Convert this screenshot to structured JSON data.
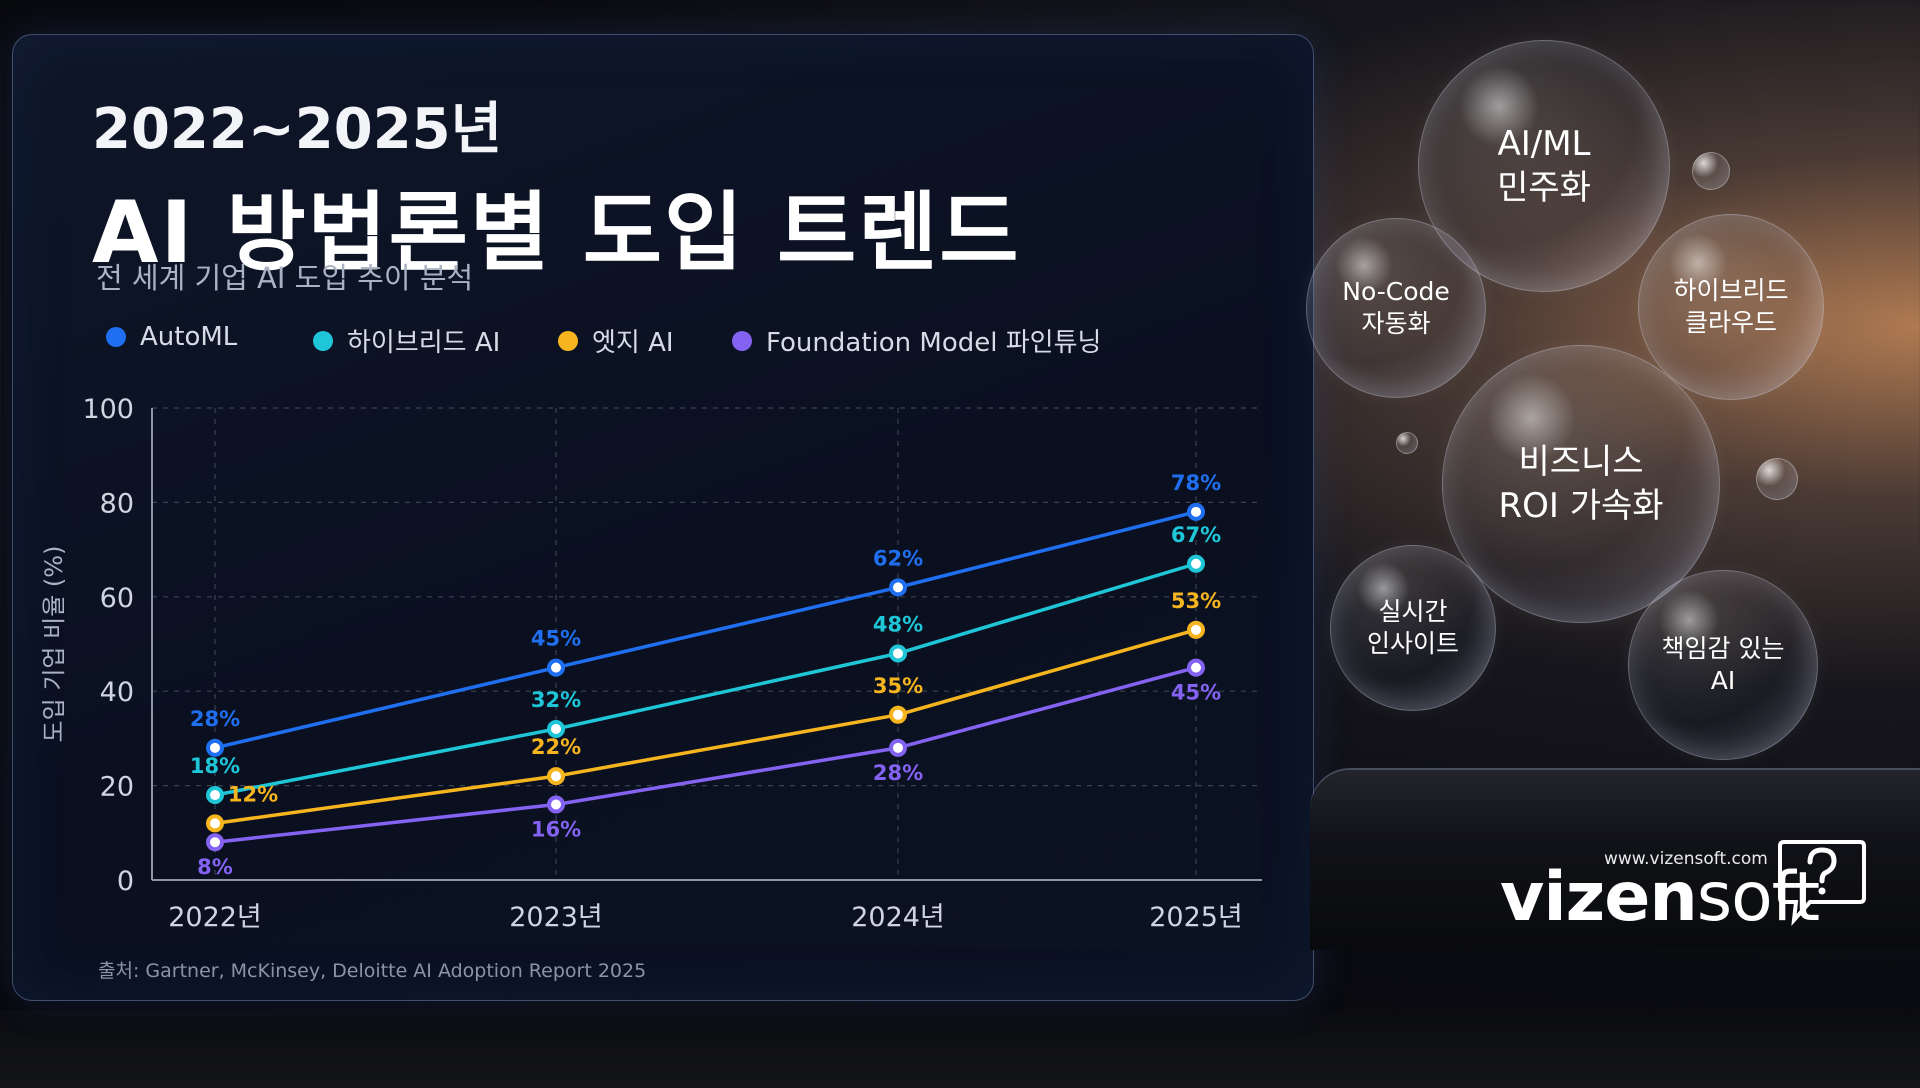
{
  "header": {
    "title_line1": "2022~2025년",
    "title_line2": "AI 방법론별 도입 트렌드",
    "subtitle": "전 세계 기업 AI 도입 추이 분석"
  },
  "source": "출처: Gartner, McKinsey, Deloitte AI Adoption Report 2025",
  "bubbles": {
    "democratization": "AI/ML\n민주화",
    "nocode": "No-Code\n자동화",
    "hybrid_cloud": "하이브리드\n클라우드",
    "roi": "비즈니스\nROI 가속화",
    "realtime": "실시간\n인사이트",
    "responsible": "책임감 있는\nAI"
  },
  "brand": {
    "url": "www.vizensoft.com",
    "name_bold": "vizen",
    "name_light": "soft"
  },
  "colors": {
    "automl": "#1f6ff0",
    "hybrid": "#1ec6d8",
    "edge": "#f6b51e",
    "foundation": "#8462f2",
    "grid": "#3a4252",
    "axis_text": "#cfd5e0"
  },
  "chart_data": {
    "type": "line",
    "categories": [
      "2022년",
      "2023년",
      "2024년",
      "2025년"
    ],
    "ylabel": "도입 기업 비율 (%)",
    "xlabel": "",
    "ylim": [
      0,
      100
    ],
    "yticks": [
      0,
      20,
      40,
      60,
      80,
      100
    ],
    "grid": true,
    "legend_position": "top",
    "series": [
      {
        "name": "AutoML",
        "values": [
          28,
          45,
          62,
          78
        ],
        "labels": [
          "28%",
          "45%",
          "62%",
          "78%"
        ]
      },
      {
        "name": "하이브리드 AI",
        "values": [
          18,
          32,
          48,
          67
        ],
        "labels": [
          "18%",
          "32%",
          "48%",
          "67%"
        ]
      },
      {
        "name": "엣지 AI",
        "values": [
          12,
          22,
          35,
          53
        ],
        "labels": [
          "12%",
          "22%",
          "35%",
          "53%"
        ]
      },
      {
        "name": "Foundation Model 파인튜닝",
        "values": [
          8,
          16,
          28,
          45
        ],
        "labels": [
          "8%",
          "16%",
          "28%",
          "45%"
        ]
      }
    ]
  }
}
